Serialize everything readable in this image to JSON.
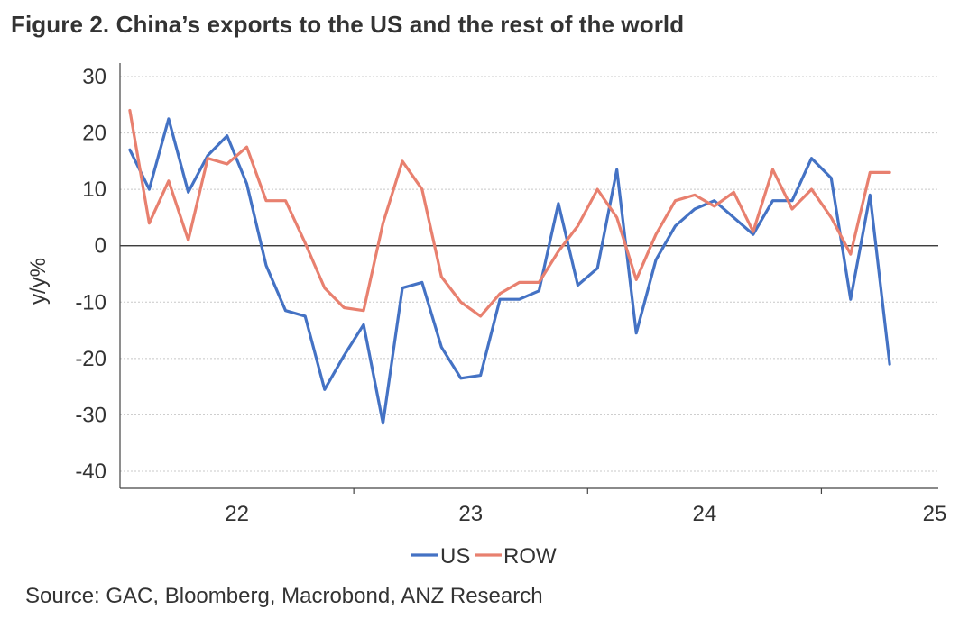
{
  "title": "Figure 2.  China’s exports to the US and the rest of the world",
  "source": "Source: GAC, Bloomberg, Macrobond, ANZ Research",
  "chart_data": {
    "type": "line",
    "ylabel": "y/y%",
    "ylim": [
      -40,
      30
    ],
    "yticks": [
      30,
      20,
      10,
      0,
      -10,
      -20,
      -30,
      -40
    ],
    "xlim": [
      21.5,
      25
    ],
    "xticks": [
      {
        "value": 22,
        "label": "22"
      },
      {
        "value": 23,
        "label": "23"
      },
      {
        "value": 24,
        "label": "24"
      },
      {
        "value": 25,
        "label": "25"
      }
    ],
    "grid": true,
    "zero_line": true,
    "legend_position": "bottom-center",
    "series": [
      {
        "name": "US",
        "color": "#4472C4",
        "x": [
          21.542,
          21.625,
          21.708,
          21.792,
          21.875,
          21.958,
          22.042,
          22.125,
          22.208,
          22.292,
          22.375,
          22.458,
          22.542,
          22.625,
          22.708,
          22.792,
          22.875,
          22.958,
          23.042,
          23.125,
          23.208,
          23.292,
          23.375,
          23.458,
          23.542,
          23.625,
          23.708,
          23.792,
          23.875,
          23.958,
          24.042,
          24.125,
          24.208,
          24.292,
          24.375,
          24.458,
          24.542,
          24.625,
          24.708,
          24.792
        ],
        "values": [
          17,
          10,
          22.5,
          9.5,
          16,
          19.5,
          11,
          -3.5,
          -11.5,
          -12.5,
          -25.5,
          -19.5,
          -14,
          -31.5,
          -7.5,
          -6.5,
          -18,
          -23.5,
          -23,
          -9.5,
          -9.5,
          -8,
          7.5,
          -7,
          -4,
          13.5,
          -15.5,
          -2.5,
          3.5,
          6.5,
          8,
          5,
          2,
          8,
          8,
          15.5,
          12,
          -9.5,
          9,
          -21
        ]
      },
      {
        "name": "ROW",
        "color": "#E8806F",
        "x": [
          21.542,
          21.625,
          21.708,
          21.792,
          21.875,
          21.958,
          22.042,
          22.125,
          22.208,
          22.292,
          22.375,
          22.458,
          22.542,
          22.625,
          22.708,
          22.792,
          22.875,
          22.958,
          23.042,
          23.125,
          23.208,
          23.292,
          23.375,
          23.458,
          23.542,
          23.625,
          23.708,
          23.792,
          23.875,
          23.958,
          24.042,
          24.125,
          24.208,
          24.292,
          24.375,
          24.458,
          24.542,
          24.625,
          24.708,
          24.792
        ],
        "values": [
          24,
          4,
          11.5,
          1,
          15.5,
          14.5,
          17.5,
          8,
          8,
          0.5,
          -7.5,
          -11,
          -11.5,
          4,
          15,
          10,
          -5.5,
          -10,
          -12.5,
          -8.5,
          -6.5,
          -6.5,
          -1,
          3.5,
          10,
          5,
          -6,
          2,
          8,
          9,
          7,
          9.5,
          2.5,
          13.5,
          6.5,
          10,
          5,
          -1.5,
          13,
          13
        ]
      }
    ]
  }
}
